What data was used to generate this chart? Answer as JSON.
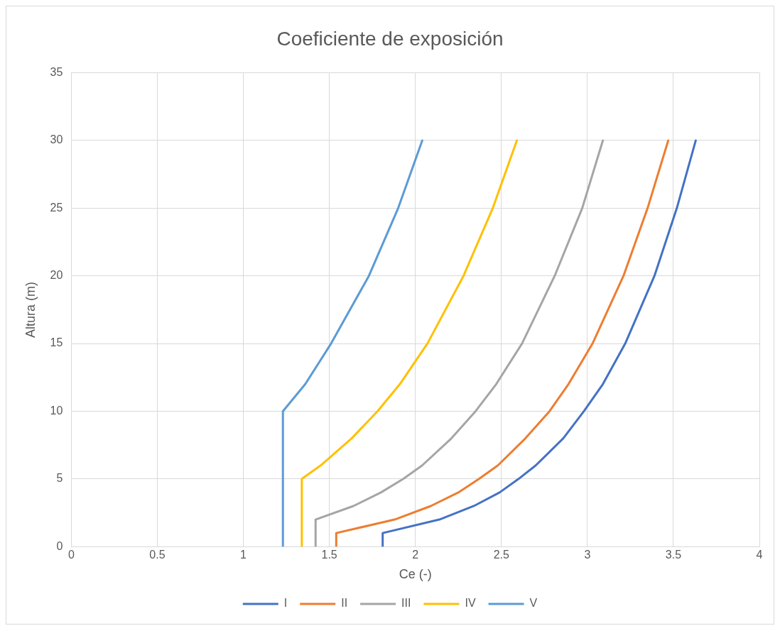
{
  "chart_data": {
    "type": "line",
    "title": "Coeficiente de exposición",
    "xlabel": "Ce (-)",
    "ylabel": "Altura (m)",
    "xlim": [
      0,
      4
    ],
    "ylim": [
      0,
      35
    ],
    "xticks": [
      0,
      0.5,
      1,
      1.5,
      2,
      2.5,
      3,
      3.5,
      4
    ],
    "yticks": [
      0,
      5,
      10,
      15,
      20,
      25,
      30,
      35
    ],
    "grid": true,
    "legend": "bottom",
    "marker": "none",
    "line_style": "solid",
    "series": [
      {
        "name": "I",
        "color": "#4472c4",
        "x": [
          1.81,
          1.81,
          2.14,
          2.34,
          2.49,
          2.6,
          2.7,
          2.86,
          2.98,
          3.09,
          3.22,
          3.39,
          3.52,
          3.63
        ],
        "values": [
          0,
          1,
          2,
          3,
          4,
          5,
          6,
          8,
          10,
          12,
          15,
          20,
          25,
          30
        ]
      },
      {
        "name": "II",
        "color": "#ed7d31",
        "x": [
          1.54,
          1.54,
          1.88,
          2.09,
          2.25,
          2.37,
          2.48,
          2.64,
          2.78,
          2.89,
          3.03,
          3.21,
          3.35,
          3.47
        ],
        "values": [
          0,
          1,
          2,
          3,
          4,
          5,
          6,
          8,
          10,
          12,
          15,
          20,
          25,
          30
        ]
      },
      {
        "name": "III",
        "color": "#a5a5a5",
        "x": [
          1.42,
          1.42,
          1.64,
          1.8,
          1.93,
          2.04,
          2.21,
          2.35,
          2.47,
          2.62,
          2.81,
          2.97,
          3.09
        ],
        "values": [
          0,
          2,
          3,
          4,
          5,
          6,
          8,
          10,
          12,
          15,
          20,
          25,
          30
        ]
      },
      {
        "name": "IV",
        "color": "#ffc000",
        "x": [
          1.34,
          1.34,
          1.45,
          1.63,
          1.78,
          1.91,
          2.07,
          2.28,
          2.45,
          2.59
        ],
        "values": [
          0,
          5,
          6,
          8,
          10,
          12,
          15,
          20,
          25,
          30
        ]
      },
      {
        "name": "V",
        "color": "#5b9bd5",
        "x": [
          1.23,
          1.23,
          1.36,
          1.51,
          1.73,
          1.9,
          2.04
        ],
        "values": [
          0,
          10,
          12,
          15,
          20,
          25,
          30
        ]
      }
    ]
  }
}
